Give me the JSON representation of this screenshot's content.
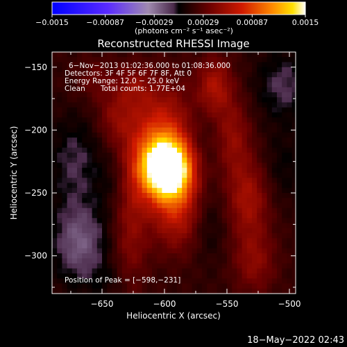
{
  "chart_data": {
    "type": "heatmap",
    "title": "Reconstructed RHESSI Image",
    "xlabel": "Heliocentric X (arcsec)",
    "ylabel": "Heliocentric Y (arcsec)",
    "xlim": [
      -690,
      -495
    ],
    "ylim": [
      -330,
      -138
    ],
    "x_ticks": [
      -650,
      -600,
      -550,
      -500
    ],
    "x_tick_labels": [
      "−650",
      "−600",
      "−550",
      "−500"
    ],
    "y_ticks": [
      -150,
      -200,
      -250,
      -300
    ],
    "y_tick_labels": [
      "−150",
      "−200",
      "−250",
      "−300"
    ],
    "colorbar": {
      "range": [
        -0.0015,
        0.0015
      ],
      "ticks": [
        -0.0015,
        -0.00087,
        -0.00029,
        0.00029,
        0.00087,
        0.0015
      ],
      "tick_labels": [
        "−0.0015",
        "−0.00087",
        "−0.00029",
        "0.00029",
        "0.00087",
        "0.0015"
      ],
      "unit_label": "(photons cm⁻² s⁻¹ asec⁻²)",
      "colors": [
        "#0000ff",
        "#ffffff",
        "#000000",
        "#ff0000",
        "#ffff00",
        "#ffffff"
      ]
    },
    "annotations": {
      "time_range": "6−Nov−2013 01:02:36.000 to 01:08:36.000",
      "detectors": "Detectors: 3F 4F 5F 6F 7F 8F, Att 0",
      "energy": "Energy Range: 12.0 − 25.0 keV",
      "clean": "Clean",
      "total_counts": "Total counts: 1.77E+04",
      "peak_position": "Position of Peak = [−598,−231]"
    },
    "peak": [
      -598,
      -231
    ],
    "sources": [
      {
        "x": -598,
        "y": -231,
        "amp": 0.0015,
        "sx": 14,
        "sy": 16
      },
      {
        "x": -603,
        "y": -208,
        "amp": 0.00062,
        "sx": 18,
        "sy": 30
      },
      {
        "x": -590,
        "y": -265,
        "amp": 0.00045,
        "sx": 14,
        "sy": 22
      },
      {
        "x": -627,
        "y": -275,
        "amp": 0.0003,
        "sx": 10,
        "sy": 45
      },
      {
        "x": -560,
        "y": -165,
        "amp": 0.00042,
        "sx": 10,
        "sy": 16
      },
      {
        "x": -545,
        "y": -205,
        "amp": 0.00032,
        "sx": 10,
        "sy": 22
      },
      {
        "x": -533,
        "y": -255,
        "amp": 0.0004,
        "sx": 12,
        "sy": 22
      },
      {
        "x": -528,
        "y": -305,
        "amp": 0.0003,
        "sx": 12,
        "sy": 18
      },
      {
        "x": -640,
        "y": -190,
        "amp": 0.00025,
        "sx": 10,
        "sy": 14
      },
      {
        "x": -655,
        "y": -160,
        "amp": 0.00018,
        "sx": 12,
        "sy": 12
      },
      {
        "x": -625,
        "y": -165,
        "amp": 0.00022,
        "sx": 10,
        "sy": 12
      },
      {
        "x": -672,
        "y": -225,
        "amp": -0.00022,
        "sx": 15,
        "sy": 26
      },
      {
        "x": -668,
        "y": -290,
        "amp": -0.00036,
        "sx": 16,
        "sy": 22
      },
      {
        "x": -640,
        "y": -240,
        "amp": -0.00012,
        "sx": 10,
        "sy": 16
      },
      {
        "x": -572,
        "y": -215,
        "amp": -0.00012,
        "sx": 10,
        "sy": 22
      },
      {
        "x": -565,
        "y": -275,
        "amp": -0.00014,
        "sx": 10,
        "sy": 20
      },
      {
        "x": -505,
        "y": -165,
        "amp": -0.00024,
        "sx": 16,
        "sy": 20
      },
      {
        "x": -505,
        "y": -230,
        "amp": -0.00014,
        "sx": 12,
        "sy": 20
      },
      {
        "x": -640,
        "y": -320,
        "amp": -0.0001,
        "sx": 15,
        "sy": 10
      }
    ]
  },
  "footer": {
    "date": "18−May−2022 02:43"
  }
}
